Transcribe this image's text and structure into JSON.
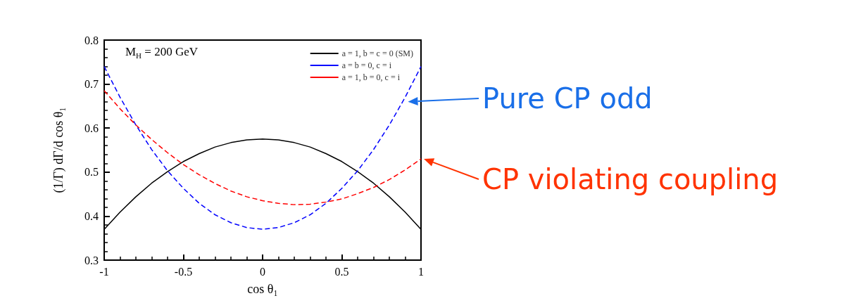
{
  "chart_data": {
    "type": "line",
    "xlabel": "cos θ₁",
    "ylabel": "(1/Γ) dΓ/d cos θ₁",
    "x": [
      -1,
      -0.9,
      -0.8,
      -0.7,
      -0.6,
      -0.5,
      -0.4,
      -0.3,
      -0.2,
      -0.1,
      0,
      0.1,
      0.2,
      0.3,
      0.4,
      0.5,
      0.6,
      0.7,
      0.8,
      0.9,
      1
    ],
    "series": [
      {
        "name": "a = 1, b = c = 0 (SM)",
        "color": "#000000",
        "line_style": "solid",
        "values": [
          0.37,
          0.409,
          0.444,
          0.475,
          0.501,
          0.524,
          0.542,
          0.557,
          0.567,
          0.573,
          0.575,
          0.573,
          0.567,
          0.557,
          0.542,
          0.524,
          0.501,
          0.475,
          0.444,
          0.409,
          0.37
        ]
      },
      {
        "name": "a = b = 0, c = i",
        "color": "#0000ff",
        "line_style": "dashed",
        "values": [
          0.74,
          0.67,
          0.607,
          0.551,
          0.503,
          0.463,
          0.429,
          0.403,
          0.385,
          0.374,
          0.37,
          0.374,
          0.385,
          0.403,
          0.429,
          0.463,
          0.503,
          0.551,
          0.607,
          0.67,
          0.74
        ]
      },
      {
        "name": "a = 1, b = 0, c = i",
        "color": "#ff0000",
        "line_style": "dashed",
        "values": [
          0.685,
          0.644,
          0.607,
          0.574,
          0.544,
          0.517,
          0.494,
          0.474,
          0.457,
          0.444,
          0.435,
          0.429,
          0.426,
          0.427,
          0.432,
          0.439,
          0.451,
          0.465,
          0.483,
          0.505,
          0.53
        ]
      }
    ],
    "xlim": [
      -1,
      1
    ],
    "xticks": [
      -1,
      -0.5,
      0,
      0.5,
      1
    ],
    "ylim": [
      0.3,
      0.8
    ],
    "yticks": [
      0.3,
      0.4,
      0.5,
      0.6,
      0.7,
      0.8
    ],
    "grid": false,
    "legend": "top right",
    "marker": "none",
    "annotations": [
      "M$_{H}$ = 200 GeV",
      {
        "text": "Pure CP odd",
        "x": 0.9,
        "y": 0.66
      },
      {
        "text": "CP violating coupling",
        "x": 1,
        "y": 0.53
      }
    ]
  }
}
